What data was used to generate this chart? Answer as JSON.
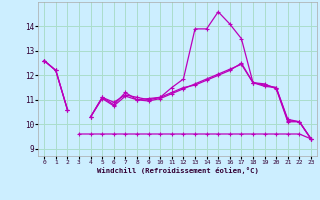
{
  "bg_color": "#cceeff",
  "grid_color": "#aaddcc",
  "line_color": "#bb00bb",
  "xlabel": "Windchill (Refroidissement éolien,°C)",
  "xlim": [
    -0.5,
    23.5
  ],
  "ylim": [
    8.7,
    15.0
  ],
  "yticks": [
    9,
    10,
    11,
    12,
    13,
    14
  ],
  "xticks": [
    0,
    1,
    2,
    3,
    4,
    5,
    6,
    7,
    8,
    9,
    10,
    11,
    12,
    13,
    14,
    15,
    16,
    17,
    18,
    19,
    20,
    21,
    22,
    23
  ],
  "series1_y": [
    12.6,
    12.2,
    10.6,
    null,
    10.3,
    11.1,
    10.8,
    11.3,
    11.0,
    11.05,
    11.1,
    11.5,
    11.85,
    13.9,
    13.9,
    14.6,
    14.1,
    13.5,
    11.7,
    11.65,
    11.45,
    10.1,
    10.1,
    9.4
  ],
  "series2_y": [
    12.6,
    12.2,
    10.6,
    null,
    10.3,
    11.1,
    10.9,
    11.2,
    11.1,
    11.0,
    11.1,
    11.3,
    11.5,
    11.6,
    11.8,
    12.0,
    12.2,
    12.5,
    11.7,
    11.6,
    11.5,
    10.2,
    10.1,
    9.4
  ],
  "series3_y": [
    12.6,
    null,
    null,
    9.6,
    9.6,
    9.6,
    9.6,
    9.6,
    9.6,
    9.6,
    9.6,
    9.6,
    9.6,
    9.6,
    9.6,
    9.6,
    9.6,
    9.6,
    9.6,
    9.6,
    9.6,
    9.6,
    9.6,
    9.4
  ],
  "series4_y": [
    12.6,
    12.2,
    10.6,
    null,
    10.3,
    11.05,
    10.75,
    11.15,
    11.0,
    10.95,
    11.05,
    11.25,
    11.45,
    11.65,
    11.85,
    12.05,
    12.25,
    12.45,
    11.7,
    11.55,
    11.5,
    10.15,
    10.1,
    9.4
  ]
}
